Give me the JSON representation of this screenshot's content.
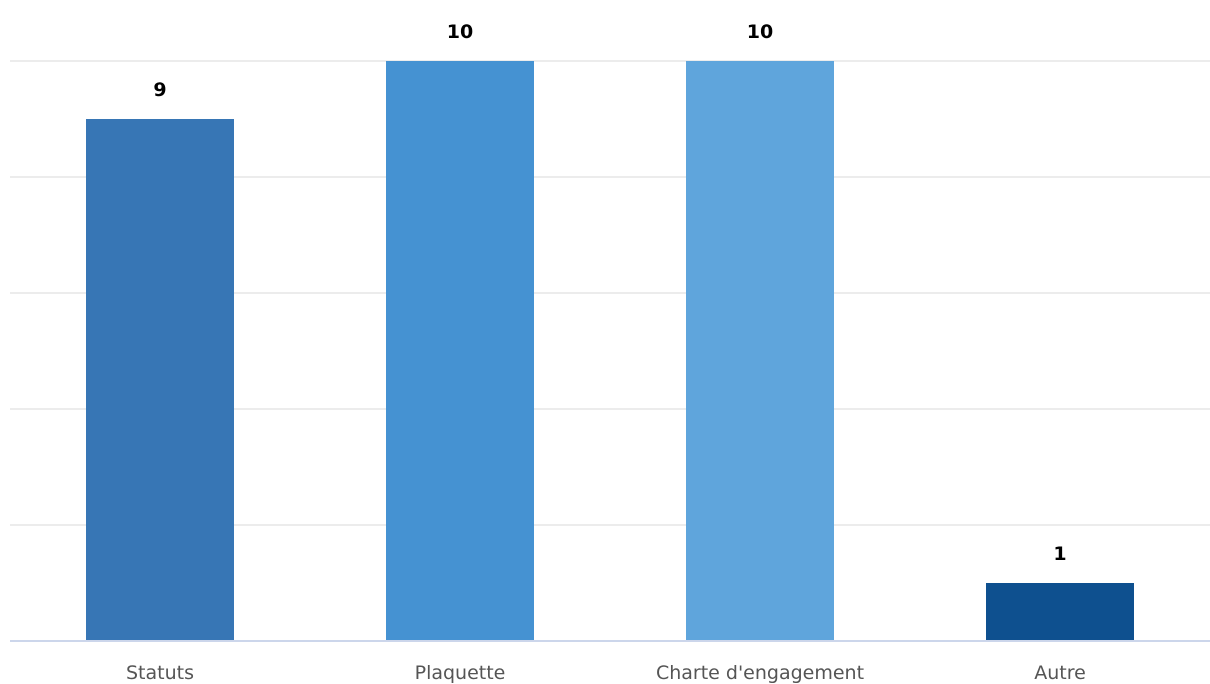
{
  "chart_data": {
    "type": "bar",
    "categories": [
      "Statuts",
      "Plaquette",
      "Charte d'engagement",
      "Autre"
    ],
    "values": [
      9,
      10,
      10,
      1
    ],
    "ylim": [
      0,
      10
    ],
    "grid": true,
    "data_labels": true,
    "colors": [
      "#3776b5",
      "#4592d2",
      "#5fa5dc",
      "#0e508f"
    ]
  }
}
